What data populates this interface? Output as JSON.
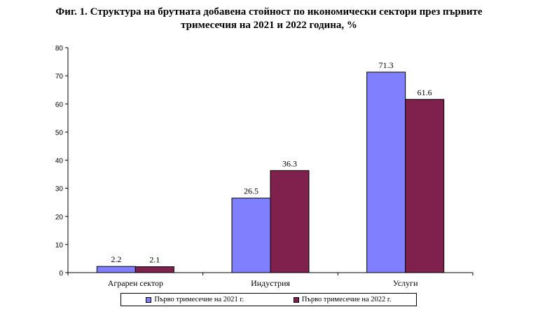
{
  "chart_data": {
    "type": "bar",
    "title": "Фиг. 1. Структура на брутната добавена стойност по икономически сектори през първите",
    "subtitle": "тримесечия на 2021 и 2022 година, %",
    "categories": [
      "Аграрен сектор",
      "Индустрия",
      "Услуги"
    ],
    "series": [
      {
        "name": "Първо тримесечие на 2021 г.",
        "values": [
          2.2,
          26.5,
          71.3
        ],
        "color": "#8080ff"
      },
      {
        "name": "Първо тримесечие на 2022 г.",
        "values": [
          2.1,
          36.3,
          61.6
        ],
        "color": "#80204d"
      }
    ],
    "ylim": [
      0,
      80
    ],
    "yticks": [
      0,
      10,
      20,
      30,
      40,
      50,
      60,
      70,
      80
    ],
    "grid": false,
    "legend_position": "bottom"
  }
}
